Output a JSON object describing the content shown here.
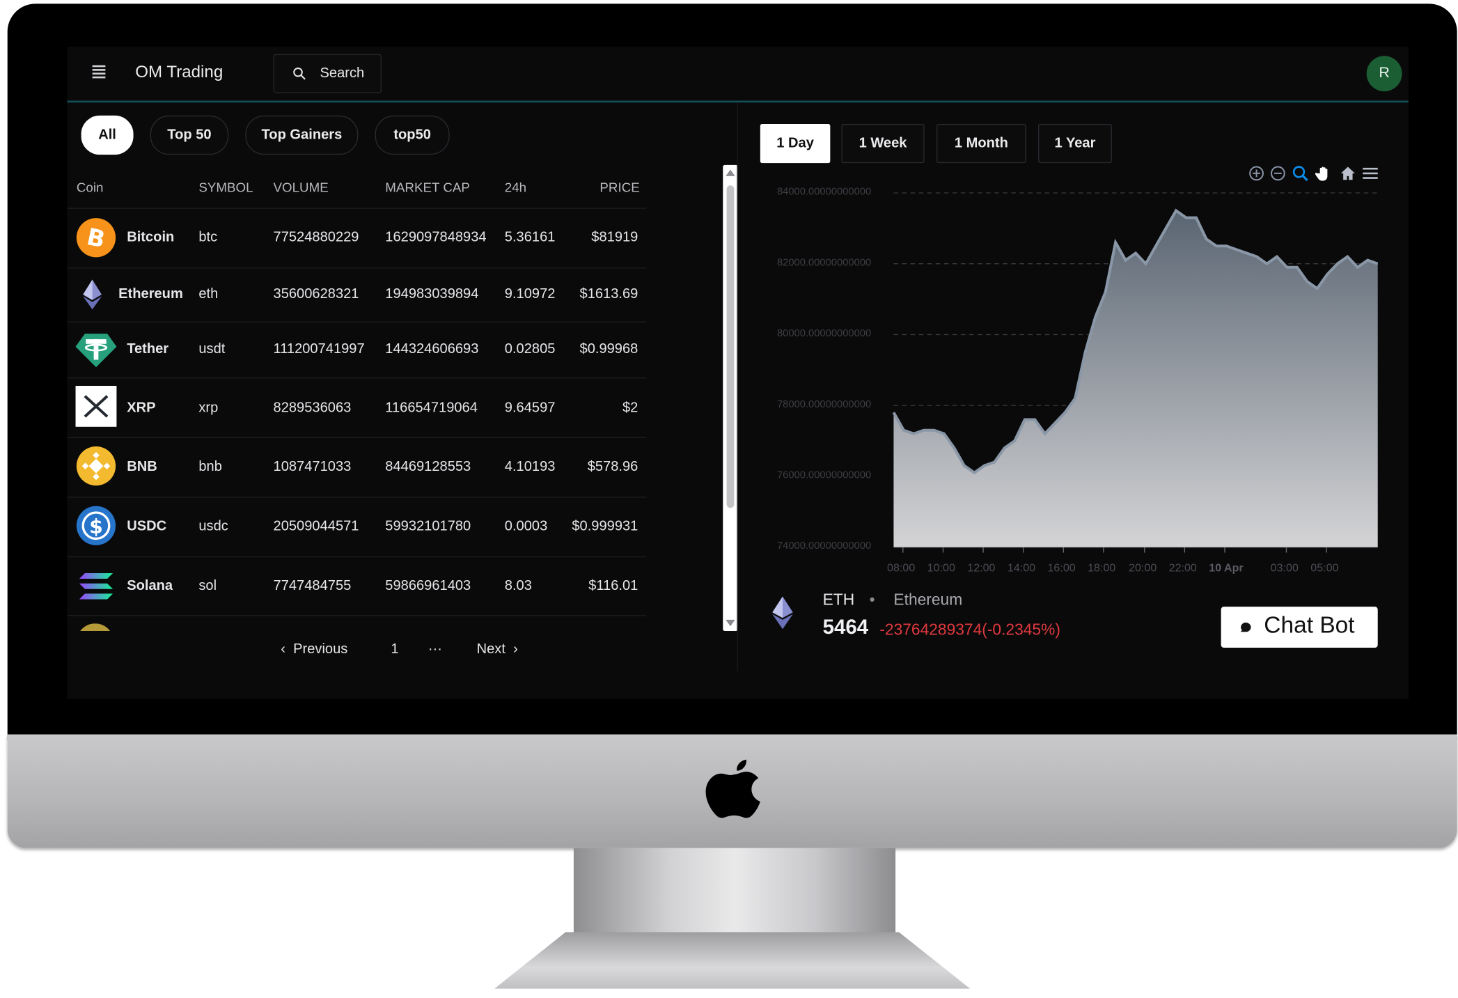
{
  "app": {
    "title": "OM Trading",
    "search_label": "Search",
    "avatar_initial": "R"
  },
  "filters": [
    "All",
    "Top 50",
    "Top Gainers",
    "top50"
  ],
  "table": {
    "headers": [
      "Coin",
      "SYMBOL",
      "VOLUME",
      "MARKET CAP",
      "24h",
      "PRICE"
    ],
    "rows": [
      {
        "name": "Bitcoin",
        "symbol": "btc",
        "volume": "77524880229",
        "market_cap": "1629097848934",
        "change_24h": "5.36161",
        "price": "$81919",
        "icon": "bitcoin-icon"
      },
      {
        "name": "Ethereum",
        "symbol": "eth",
        "volume": "35600628321",
        "market_cap": "194983039894",
        "change_24h": "9.10972",
        "price": "$1613.69",
        "icon": "ethereum-icon"
      },
      {
        "name": "Tether",
        "symbol": "usdt",
        "volume": "111200741997",
        "market_cap": "144324606693",
        "change_24h": "0.02805",
        "price": "$0.99968",
        "icon": "tether-icon"
      },
      {
        "name": "XRP",
        "symbol": "xrp",
        "volume": "8289536063",
        "market_cap": "116654719064",
        "change_24h": "9.64597",
        "price": "$2",
        "icon": "xrp-icon"
      },
      {
        "name": "BNB",
        "symbol": "bnb",
        "volume": "1087471033",
        "market_cap": "84469128553",
        "change_24h": "4.10193",
        "price": "$578.96",
        "icon": "bnb-icon"
      },
      {
        "name": "USDC",
        "symbol": "usdc",
        "volume": "20509044571",
        "market_cap": "59932101780",
        "change_24h": "0.0003",
        "price": "$0.999931",
        "icon": "usdc-icon"
      },
      {
        "name": "Solana",
        "symbol": "sol",
        "volume": "7747484755",
        "market_cap": "59866961403",
        "change_24h": "8.03",
        "price": "$116.01",
        "icon": "solana-icon"
      }
    ]
  },
  "pagination": {
    "previous": "Previous",
    "page": "1",
    "ellipsis": "···",
    "next": "Next"
  },
  "ranges": [
    "1 Day",
    "1 Week",
    "1 Month",
    "1 Year"
  ],
  "chart_toolbar": [
    "zoom-in-icon",
    "zoom-out-icon",
    "zoom-select-icon",
    "pan-hand-icon",
    "reset-home-icon",
    "menu-icon"
  ],
  "chart_data": {
    "type": "area",
    "ylim": [
      74000,
      84000
    ],
    "y_ticks": [
      "84000.00000000000",
      "82000.00000000000",
      "80000.00000000000",
      "78000.00000000000",
      "76000.00000000000",
      "74000.00000000000"
    ],
    "x_ticks": [
      "08:00",
      "10:00",
      "12:00",
      "14:00",
      "16:00",
      "18:00",
      "20:00",
      "22:00",
      "10 Apr",
      "03:00",
      "05:00"
    ],
    "x": [
      "07:00",
      "07:30",
      "08:00",
      "08:30",
      "09:00",
      "09:30",
      "10:00",
      "10:30",
      "11:00",
      "11:30",
      "12:00",
      "12:30",
      "13:00",
      "13:30",
      "14:00",
      "14:30",
      "15:00",
      "15:30",
      "16:00",
      "16:30",
      "17:00",
      "17:30",
      "18:00",
      "18:30",
      "19:00",
      "19:30",
      "20:00",
      "20:30",
      "21:00",
      "21:30",
      "22:00",
      "22:30",
      "23:00",
      "23:30",
      "00:00",
      "00:30",
      "01:00",
      "01:30",
      "02:00",
      "02:30",
      "03:00",
      "03:30",
      "04:00",
      "04:30",
      "05:00",
      "05:30",
      "06:00",
      "06:30",
      "07:00"
    ],
    "series": [
      {
        "values": [
          77800,
          77300,
          77200,
          77300,
          77300,
          77200,
          76800,
          76300,
          76100,
          76300,
          76400,
          76800,
          77000,
          77600,
          77600,
          77200,
          77500,
          77800,
          78200,
          79500,
          80500,
          81200,
          82600,
          82100,
          82300,
          82000,
          82500,
          83000,
          83500,
          83300,
          83300,
          82700,
          82500,
          82500,
          82400,
          82300,
          82200,
          82000,
          82200,
          81900,
          81900,
          81500,
          81300,
          81700,
          82000,
          82200,
          81900,
          82100,
          82000
        ]
      }
    ],
    "grid": true,
    "colors": {
      "line": "#8a97a7",
      "fill_top": "#5a6572",
      "fill_bottom": "#d4d4d6"
    }
  },
  "asset": {
    "symbol": "ETH",
    "separator": "•",
    "name": "Ethereum",
    "value": "5464",
    "change": "-23764289374(-0.2345%)"
  },
  "chat_bot_label": "Chat Bot"
}
